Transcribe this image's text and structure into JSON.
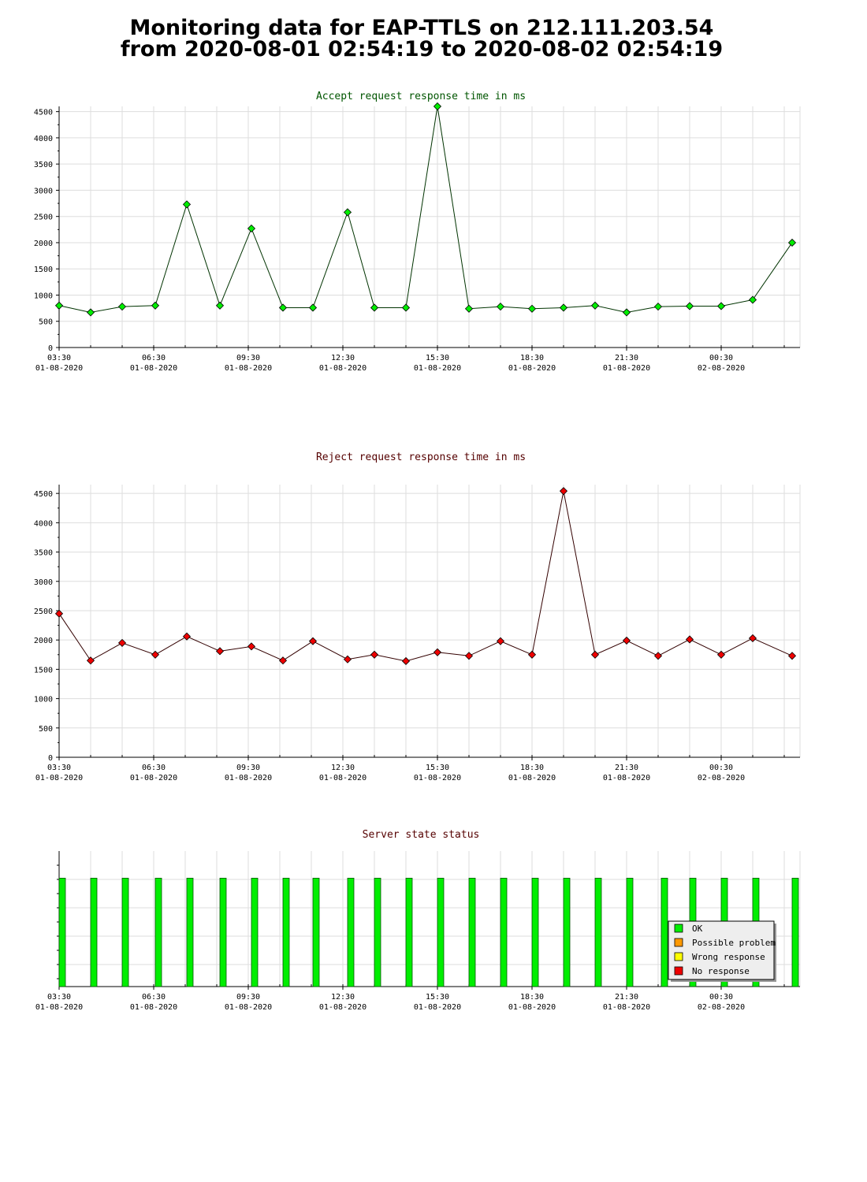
{
  "header": {
    "title_line1": "Monitoring data for EAP-TTLS on 212.111.203.54",
    "title_line2": "from 2020-08-01 02:54:19 to 2020-08-02 02:54:19"
  },
  "x_axis": {
    "ticks": [
      {
        "t": 0,
        "time": "03:30",
        "date": "01-08-2020"
      },
      {
        "t": 3,
        "time": "06:30",
        "date": "01-08-2020"
      },
      {
        "t": 6,
        "time": "09:30",
        "date": "01-08-2020"
      },
      {
        "t": 9,
        "time": "12:30",
        "date": "01-08-2020"
      },
      {
        "t": 12,
        "time": "15:30",
        "date": "01-08-2020"
      },
      {
        "t": 15,
        "time": "18:30",
        "date": "01-08-2020"
      },
      {
        "t": 18,
        "time": "21:30",
        "date": "01-08-2020"
      },
      {
        "t": 21,
        "time": "00:30",
        "date": "02-08-2020"
      }
    ],
    "range_hours": [
      0,
      23.5
    ]
  },
  "chart_data": [
    {
      "type": "line",
      "title": "Accept request response time in ms",
      "title_color": "#005500",
      "line_color": "#003300",
      "marker_color": "#00ee00",
      "ylim": [
        0,
        4600
      ],
      "yticks": [
        0,
        500,
        1000,
        1500,
        2000,
        2500,
        3000,
        3500,
        4000,
        4500
      ],
      "x": [
        0,
        1,
        2,
        3.05,
        4.05,
        5.1,
        6.1,
        7.1,
        8.05,
        9.15,
        10,
        11,
        12,
        13,
        14,
        15,
        16,
        17,
        18,
        19,
        20,
        21,
        22,
        23.25
      ],
      "values": [
        800,
        670,
        780,
        800,
        2730,
        800,
        2270,
        760,
        760,
        2580,
        760,
        760,
        4600,
        740,
        780,
        740,
        760,
        800,
        670,
        780,
        790,
        790,
        910,
        2000
      ]
    },
    {
      "type": "line",
      "title": "Reject request response time in ms",
      "title_color": "#550000",
      "line_color": "#330000",
      "marker_color": "#ee0000",
      "ylim": [
        0,
        4650
      ],
      "yticks": [
        0,
        500,
        1000,
        1500,
        2000,
        2500,
        3000,
        3500,
        4000,
        4500
      ],
      "x": [
        0,
        1,
        2,
        3.05,
        4.05,
        5.1,
        6.1,
        7.1,
        8.05,
        9.15,
        10,
        11,
        12,
        13,
        14,
        15,
        16,
        17,
        18,
        19,
        20,
        21,
        22,
        23.25
      ],
      "values": [
        2450,
        1650,
        1950,
        1750,
        2060,
        1810,
        1890,
        1650,
        1980,
        1670,
        1750,
        1640,
        1790,
        1730,
        1980,
        1750,
        4540,
        1750,
        1990,
        1730,
        2010,
        1750,
        2030,
        1730
      ]
    },
    {
      "type": "bar",
      "title": "Server state status",
      "title_color": "#550000",
      "x": [
        0.1,
        1.1,
        2.1,
        3.15,
        4.15,
        5.2,
        6.2,
        7.2,
        8.15,
        9.25,
        10.1,
        11.1,
        12.1,
        13.1,
        14.1,
        15.1,
        16.1,
        17.1,
        18.1,
        19.2,
        20.1,
        21.1,
        22.1,
        23.35
      ],
      "states": [
        "OK",
        "OK",
        "OK",
        "OK",
        "OK",
        "OK",
        "OK",
        "OK",
        "OK",
        "OK",
        "OK",
        "OK",
        "OK",
        "OK",
        "OK",
        "OK",
        "OK",
        "OK",
        "OK",
        "OK",
        "OK",
        "OK",
        "OK",
        "OK"
      ],
      "level": 0.8,
      "legend": {
        "placement": "bottom-right",
        "items": [
          {
            "label": "OK",
            "color": "#00ee00"
          },
          {
            "label": "Possible problem",
            "color": "#ff9900"
          },
          {
            "label": "Wrong response",
            "color": "#ffff00"
          },
          {
            "label": "No response",
            "color": "#ee0000"
          }
        ]
      }
    }
  ]
}
